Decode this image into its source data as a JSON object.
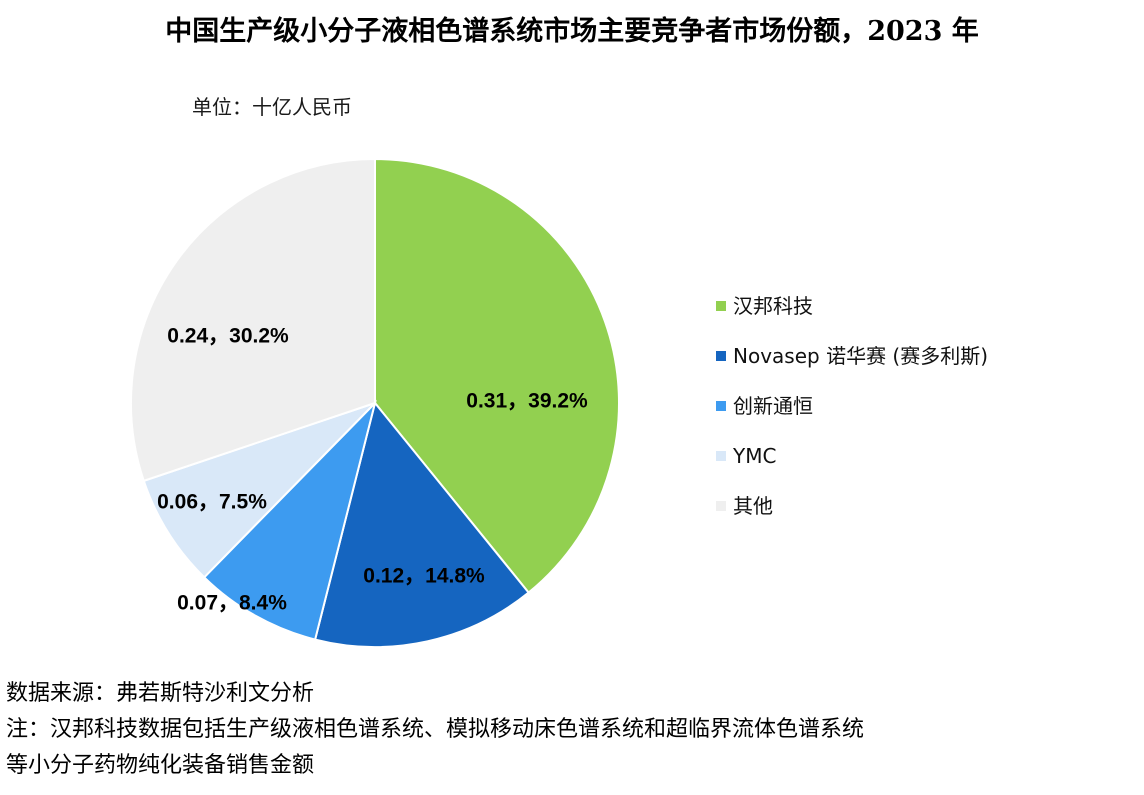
{
  "chart_data": {
    "type": "pie",
    "title": "中国生产级小分子液相色谱系统市场主要竞争者市场份额，2023 年",
    "unit_label": "单位：十亿人民币",
    "legend_position": "right",
    "slices": [
      {
        "name": "汉邦科技",
        "value": 0.31,
        "percent": 39.2,
        "label": "0.31，39.2%",
        "color": "#92d050"
      },
      {
        "name": "Novasep 诺华赛 (赛多利斯)",
        "value": 0.12,
        "percent": 14.8,
        "label": "0.12，14.8%",
        "color": "#1565c0"
      },
      {
        "name": "创新通恒",
        "value": 0.07,
        "percent": 8.4,
        "label": "0.07，8.4%",
        "color": "#3d9bf0"
      },
      {
        "name": "YMC",
        "value": 0.06,
        "percent": 7.5,
        "label": "0.06，7.5%",
        "color": "#d9e8f8"
      },
      {
        "name": "其他",
        "value": 0.24,
        "percent": 30.2,
        "label": "0.24，30.2%",
        "color": "#efefef"
      }
    ]
  },
  "footnotes": {
    "source": "数据来源：弗若斯特沙利文分析",
    "note_line1": "注：汉邦科技数据包括生产级液相色谱系统、模拟移动床色谱系统和超临界流体色谱系统",
    "note_line2": "等小分子药物纯化装备销售金额"
  }
}
